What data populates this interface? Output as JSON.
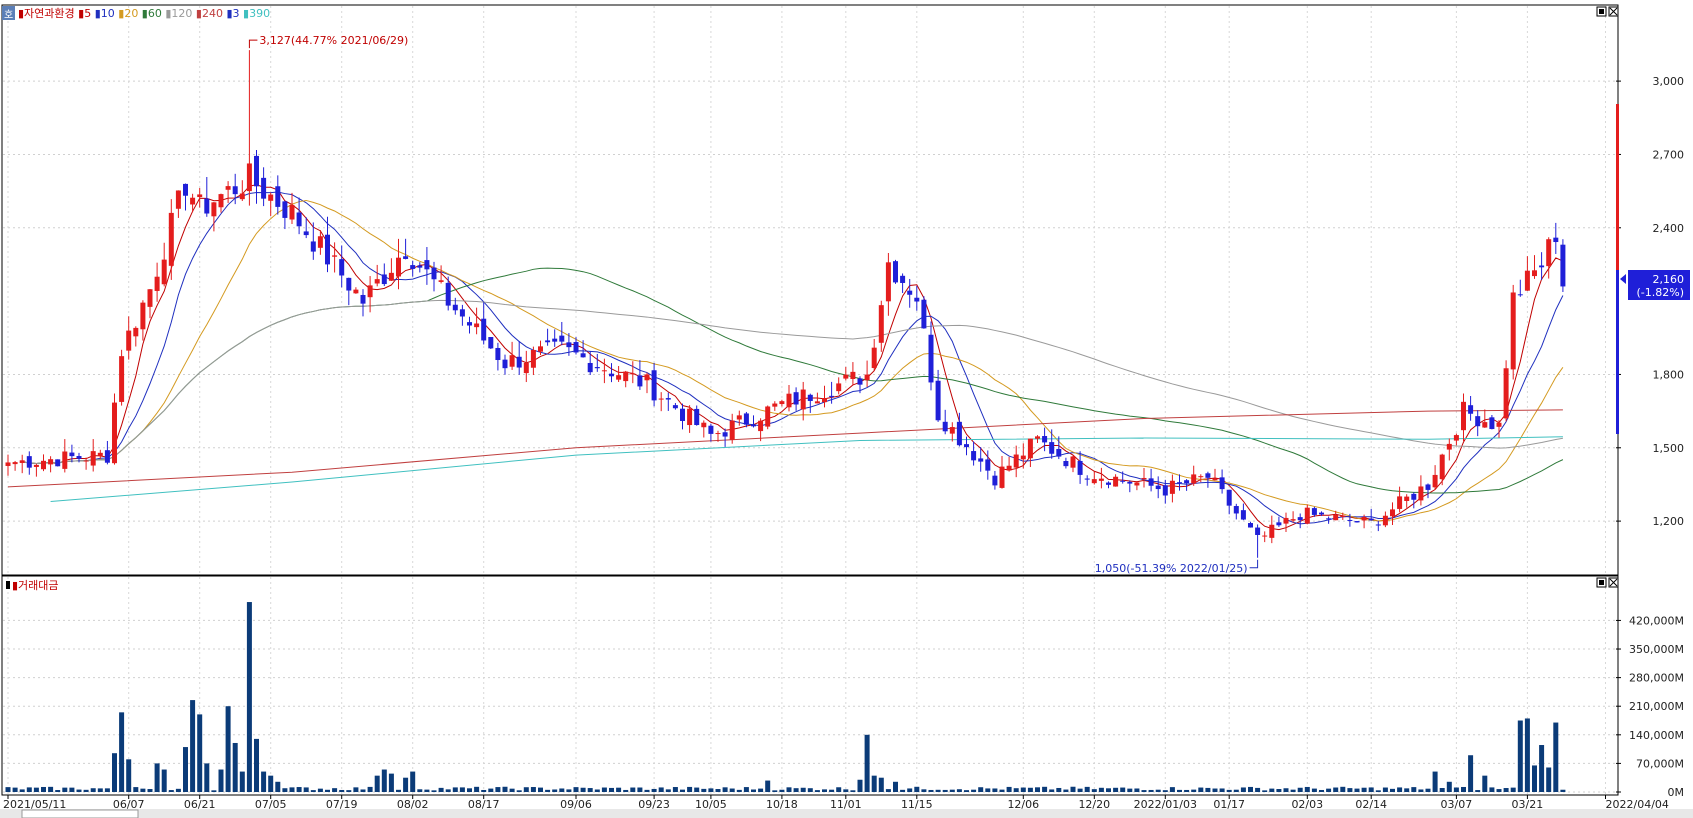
{
  "price_panel": {
    "legend": [
      {
        "label": "자연과환경",
        "color": "#c00000"
      },
      {
        "label": "5",
        "color": "#c00000"
      },
      {
        "label": "10",
        "color": "#1f2fbf"
      },
      {
        "label": "20",
        "color": "#d49a20"
      },
      {
        "label": "60",
        "color": "#2f7a3a"
      },
      {
        "label": "120",
        "color": "#9a9a9a"
      },
      {
        "label": "240",
        "color": "#c04040"
      },
      {
        "label": "3",
        "color": "#1f2fbf"
      },
      {
        "label": "390",
        "color": "#40c0c0"
      }
    ],
    "corner_icon_label": "호",
    "annotation_high": "3,127(44.77% 2021/06/29)",
    "annotation_low": "1,050(-51.39% 2022/01/25)",
    "current_price": "2,160",
    "current_change": "(-1.82%)"
  },
  "volume_panel": {
    "legend": [
      {
        "label": "거래대금",
        "color": "#c00000"
      }
    ]
  },
  "colors": {
    "up": "#e41d1d",
    "down": "#1f1fd8",
    "volume": "#0b3b78"
  },
  "chart_data": [
    {
      "type": "candlestick",
      "title": "",
      "y_ticks": [
        "1,200",
        "1,500",
        "1,800",
        "2,400",
        "2,700",
        "3,000"
      ],
      "y_tick_values": [
        1200,
        1500,
        1800,
        2400,
        2700,
        3000
      ],
      "ylim": [
        1000,
        3250
      ],
      "x_ticks": [
        "2021/05/11",
        "06/07",
        "06/21",
        "07/05",
        "07/19",
        "08/02",
        "08/17",
        "09/06",
        "09/23",
        "10/05",
        "10/18",
        "11/01",
        "11/15",
        "12/06",
        "12/20",
        "2022/01/03",
        "01/17",
        "02/03",
        "02/14",
        "03/07",
        "03/21",
        "2022/04/04"
      ],
      "x_tick_index": [
        0,
        17,
        27,
        37,
        47,
        57,
        67,
        80,
        91,
        99,
        109,
        118,
        128,
        143,
        153,
        163,
        172,
        183,
        192,
        204,
        214,
        225
      ],
      "key_points": [
        {
          "index": 0,
          "date": "2021/05/11",
          "value": 1440
        },
        {
          "index": 14,
          "value": 1470
        },
        {
          "index": 16,
          "value": 1900
        },
        {
          "index": 20,
          "value": 2150
        },
        {
          "index": 25,
          "value": 2580
        },
        {
          "index": 27,
          "value": 2480
        },
        {
          "index": 34,
          "date": "2021/06/29",
          "value": 2600,
          "high": 3127
        },
        {
          "index": 40,
          "value": 2460
        },
        {
          "index": 50,
          "value": 2100
        },
        {
          "index": 56,
          "value": 2320
        },
        {
          "index": 62,
          "value": 2100
        },
        {
          "index": 70,
          "value": 1850
        },
        {
          "index": 78,
          "value": 1900
        },
        {
          "index": 90,
          "value": 1760
        },
        {
          "index": 99,
          "value": 1550
        },
        {
          "index": 110,
          "value": 1690
        },
        {
          "index": 121,
          "value": 1800
        },
        {
          "index": 124,
          "value": 2260
        },
        {
          "index": 128,
          "value": 2120
        },
        {
          "index": 131,
          "value": 1640
        },
        {
          "index": 139,
          "value": 1380
        },
        {
          "index": 145,
          "value": 1530
        },
        {
          "index": 152,
          "value": 1400
        },
        {
          "index": 163,
          "value": 1330
        },
        {
          "index": 169,
          "value": 1380
        },
        {
          "index": 176,
          "date": "2022/01/25",
          "value": 1120,
          "low": 1050
        },
        {
          "index": 182,
          "value": 1230
        },
        {
          "index": 192,
          "value": 1190
        },
        {
          "index": 200,
          "value": 1350
        },
        {
          "index": 205,
          "value": 1650
        },
        {
          "index": 210,
          "value": 1590
        },
        {
          "index": 212,
          "value": 2110
        },
        {
          "index": 216,
          "value": 2250
        },
        {
          "index": 218,
          "value": 2380
        },
        {
          "index": 219,
          "value": 2160
        }
      ],
      "moving_averages": [
        {
          "period": 5,
          "color": "#c00000"
        },
        {
          "period": 10,
          "color": "#1f2fbf"
        },
        {
          "period": 20,
          "color": "#d49a20"
        },
        {
          "period": 60,
          "color": "#2f7a3a"
        },
        {
          "period": 120,
          "color": "#9a9a9a"
        },
        {
          "period": 240,
          "color": "#c04040",
          "points": [
            [
              0,
              1340
            ],
            [
              40,
              1400
            ],
            [
              80,
              1500
            ],
            [
              120,
              1560
            ],
            [
              160,
              1620
            ],
            [
              200,
              1650
            ],
            [
              219,
              1655
            ]
          ]
        },
        {
          "period": 390,
          "color": "#40c0c0",
          "points": [
            [
              6,
              1280
            ],
            [
              40,
              1360
            ],
            [
              80,
              1470
            ],
            [
              120,
              1530
            ],
            [
              160,
              1540
            ],
            [
              200,
              1535
            ],
            [
              219,
              1545
            ]
          ]
        }
      ]
    },
    {
      "type": "bar",
      "series": [
        {
          "name": "거래대금"
        }
      ],
      "y_ticks": [
        "0M",
        "70,000M",
        "140,000M",
        "210,000M",
        "280,000M",
        "350,000M",
        "420,000M"
      ],
      "y_tick_values": [
        0,
        70000,
        140000,
        210000,
        280000,
        350000,
        420000
      ],
      "ylim": [
        0,
        470000
      ],
      "spikes": [
        {
          "index": 15,
          "value": 95000
        },
        {
          "index": 16,
          "value": 195000
        },
        {
          "index": 17,
          "value": 80000
        },
        {
          "index": 21,
          "value": 70000
        },
        {
          "index": 22,
          "value": 55000
        },
        {
          "index": 25,
          "value": 110000
        },
        {
          "index": 26,
          "value": 225000
        },
        {
          "index": 27,
          "value": 190000
        },
        {
          "index": 28,
          "value": 70000
        },
        {
          "index": 30,
          "value": 55000
        },
        {
          "index": 31,
          "value": 210000
        },
        {
          "index": 32,
          "value": 120000
        },
        {
          "index": 33,
          "value": 50000
        },
        {
          "index": 34,
          "value": 465000
        },
        {
          "index": 35,
          "value": 130000
        },
        {
          "index": 36,
          "value": 50000
        },
        {
          "index": 37,
          "value": 40000
        },
        {
          "index": 38,
          "value": 25000
        },
        {
          "index": 52,
          "value": 40000
        },
        {
          "index": 53,
          "value": 55000
        },
        {
          "index": 54,
          "value": 45000
        },
        {
          "index": 56,
          "value": 35000
        },
        {
          "index": 57,
          "value": 50000
        },
        {
          "index": 107,
          "value": 28000
        },
        {
          "index": 120,
          "value": 30000
        },
        {
          "index": 121,
          "value": 140000
        },
        {
          "index": 122,
          "value": 40000
        },
        {
          "index": 123,
          "value": 35000
        },
        {
          "index": 125,
          "value": 25000
        },
        {
          "index": 201,
          "value": 50000
        },
        {
          "index": 203,
          "value": 25000
        },
        {
          "index": 206,
          "value": 90000
        },
        {
          "index": 208,
          "value": 40000
        },
        {
          "index": 213,
          "value": 175000
        },
        {
          "index": 214,
          "value": 180000
        },
        {
          "index": 215,
          "value": 65000
        },
        {
          "index": 216,
          "value": 115000
        },
        {
          "index": 217,
          "value": 60000
        },
        {
          "index": 218,
          "value": 170000
        }
      ]
    }
  ]
}
